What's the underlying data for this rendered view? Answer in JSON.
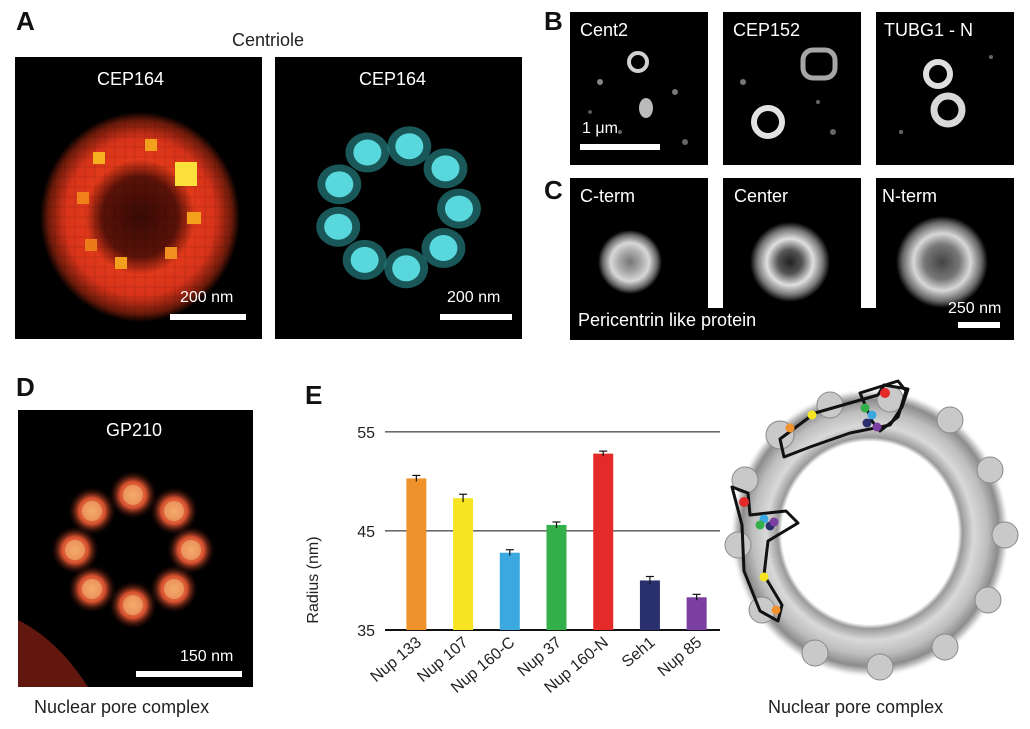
{
  "panel_a": {
    "letter": "A",
    "title": "Centriole",
    "left_label": "CEP164",
    "right_label": "CEP164",
    "left_scale": "200 nm",
    "right_scale": "200 nm"
  },
  "panel_b": {
    "letter": "B",
    "labels": [
      "Cent2",
      "CEP152",
      "TUBG1 - N"
    ],
    "scale": "1 μm"
  },
  "panel_c": {
    "letter": "C",
    "labels": [
      "C-term",
      "Center",
      "N-term"
    ],
    "caption": "Pericentrin like protein",
    "scale": "250 nm"
  },
  "panel_d": {
    "letter": "D",
    "label": "GP210",
    "scale": "150 nm",
    "caption": "Nuclear pore complex"
  },
  "panel_e": {
    "letter": "E",
    "caption": "Nuclear pore complex"
  },
  "chart_data": {
    "type": "bar",
    "title": "",
    "xlabel": "",
    "ylabel": "Radius (nm)",
    "ylim": [
      35,
      57
    ],
    "yticks": [
      35,
      45,
      55
    ],
    "categories": [
      "Nup 133",
      "Nup 107",
      "Nup 160-C",
      "Nup 37",
      "Nup 160-N",
      "Seh1",
      "Nup 85"
    ],
    "values": [
      50.3,
      48.3,
      42.8,
      45.6,
      52.8,
      40.0,
      38.3
    ],
    "errors": [
      0.3,
      0.4,
      0.3,
      0.3,
      0.25,
      0.4,
      0.3
    ],
    "colors": [
      "#f0922b",
      "#f6e422",
      "#3ba8e0",
      "#33b04a",
      "#e52a2a",
      "#2a2f6e",
      "#7a3fa0"
    ],
    "grid": "horizontal lines at 45 and 55"
  }
}
